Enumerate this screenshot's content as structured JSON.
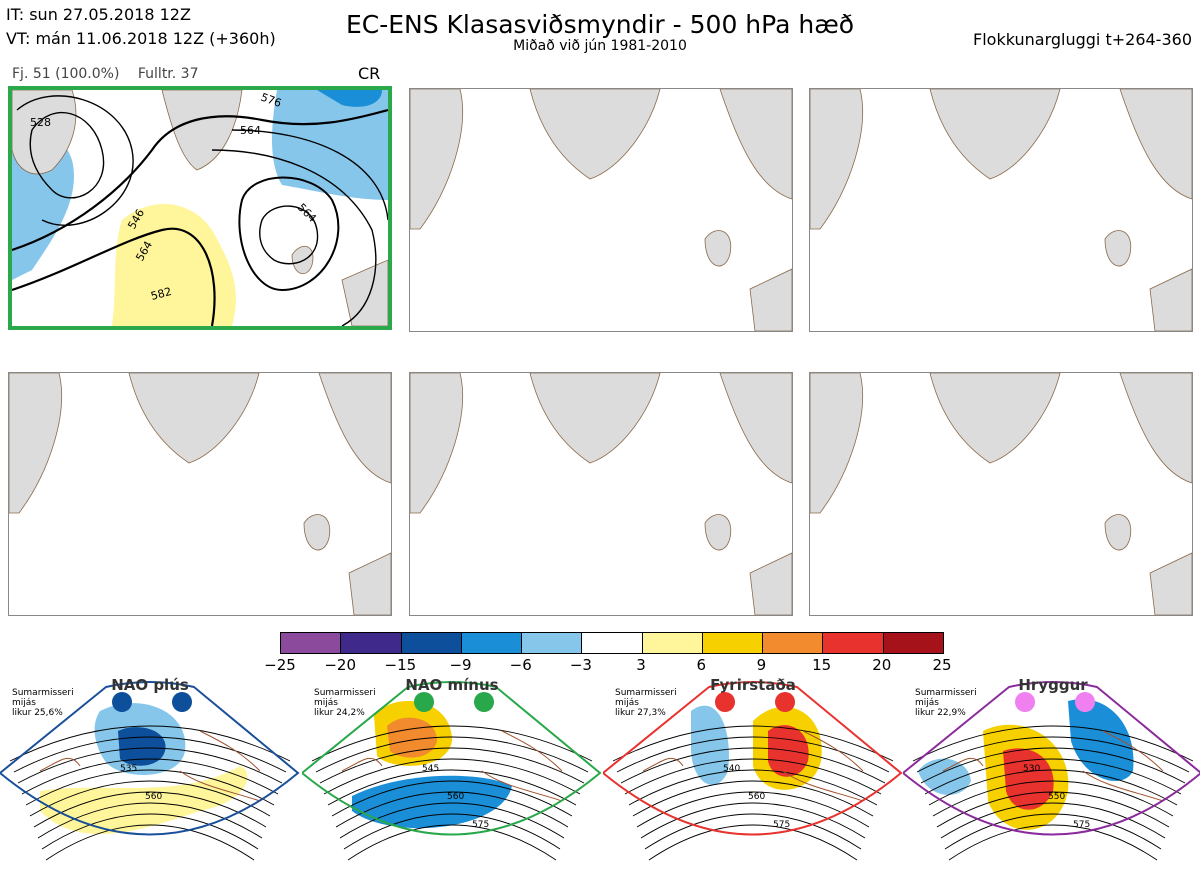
{
  "header": {
    "init_time": "IT: sun 27.05.2018 12Z",
    "valid_time": "VT: mán 11.06.2018 12Z  (+360h)",
    "title": "EC-ENS Klasasviðsmyndir - 500 hPa hæð",
    "subtitle": "Miðað við jún 1981-2010",
    "window": "Flokkunargluggi t+264-360"
  },
  "panel": {
    "members": "Fj. 51 (100.0%)",
    "representative": "Fulltr. 37",
    "regime_code": "CR"
  },
  "contour_labels": [
    "528",
    "546",
    "564",
    "564",
    "564",
    "582",
    "576"
  ],
  "colorbar": {
    "ticks": [
      "−25",
      "−20",
      "−15",
      "−9",
      "−6",
      "−3",
      "3",
      "6",
      "9",
      "15",
      "20",
      "25"
    ],
    "colors": [
      "#8b4a9c",
      "#3f2a8c",
      "#0d4f9a",
      "#1a8fd8",
      "#86c6ea",
      "#ffffff",
      "#fff59a",
      "#f7d000",
      "#f28a2e",
      "#e8322e",
      "#a5121a"
    ]
  },
  "regimes": [
    {
      "name": "NAO plús",
      "note": [
        "Sumarmisseri",
        "mijás",
        "likur 25,6%"
      ],
      "dot_color": "#0d4f9a",
      "frame_color": "#1a4f9a",
      "labels": [
        "535",
        "560"
      ]
    },
    {
      "name": "NAO mínus",
      "note": [
        "Sumarmisseri",
        "mijás",
        "likur 24,2%"
      ],
      "dot_color": "#28a84a",
      "frame_color": "#28a84a",
      "labels": [
        "545",
        "560",
        "575"
      ]
    },
    {
      "name": "Fyrirstaða",
      "note": [
        "Sumarmisseri",
        "mijás",
        "likur 27,3%"
      ],
      "dot_color": "#e8322e",
      "frame_color": "#e8322e",
      "labels": [
        "540",
        "560",
        "575"
      ]
    },
    {
      "name": "Hryggur",
      "note": [
        "Sumarmisseri",
        "mijás",
        "likur 22,9%"
      ],
      "dot_color": "#f080f0",
      "frame_color": "#8b2a9c",
      "labels": [
        "530",
        "550",
        "575"
      ]
    }
  ]
}
